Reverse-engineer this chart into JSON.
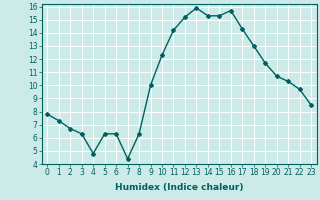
{
  "x": [
    0,
    1,
    2,
    3,
    4,
    5,
    6,
    7,
    8,
    9,
    10,
    11,
    12,
    13,
    14,
    15,
    16,
    17,
    18,
    19,
    20,
    21,
    22,
    23
  ],
  "y": [
    7.8,
    7.3,
    6.7,
    6.3,
    4.8,
    6.3,
    6.3,
    4.4,
    6.3,
    10.0,
    12.3,
    14.2,
    15.2,
    15.9,
    15.3,
    15.3,
    15.7,
    14.3,
    13.0,
    11.7,
    10.7,
    10.3,
    9.7,
    8.5
  ],
  "line_color": "#006060",
  "marker": "D",
  "marker_size": 2,
  "line_width": 1.0,
  "xlabel": "Humidex (Indice chaleur)",
  "ylabel": "",
  "xlim": [
    -0.5,
    23.5
  ],
  "ylim": [
    4,
    16.2
  ],
  "yticks": [
    4,
    5,
    6,
    7,
    8,
    9,
    10,
    11,
    12,
    13,
    14,
    15,
    16
  ],
  "xticks": [
    0,
    1,
    2,
    3,
    4,
    5,
    6,
    7,
    8,
    9,
    10,
    11,
    12,
    13,
    14,
    15,
    16,
    17,
    18,
    19,
    20,
    21,
    22,
    23
  ],
  "xtick_labels": [
    "0",
    "1",
    "2",
    "3",
    "4",
    "5",
    "6",
    "7",
    "8",
    "9",
    "10",
    "11",
    "12",
    "13",
    "14",
    "15",
    "16",
    "17",
    "18",
    "19",
    "20",
    "21",
    "22",
    "23"
  ],
  "background_color": "#cceae7",
  "grid_color": "#ffffff",
  "tick_color": "#006060",
  "label_color": "#006060",
  "xlabel_fontsize": 6.5,
  "tick_fontsize": 5.5
}
